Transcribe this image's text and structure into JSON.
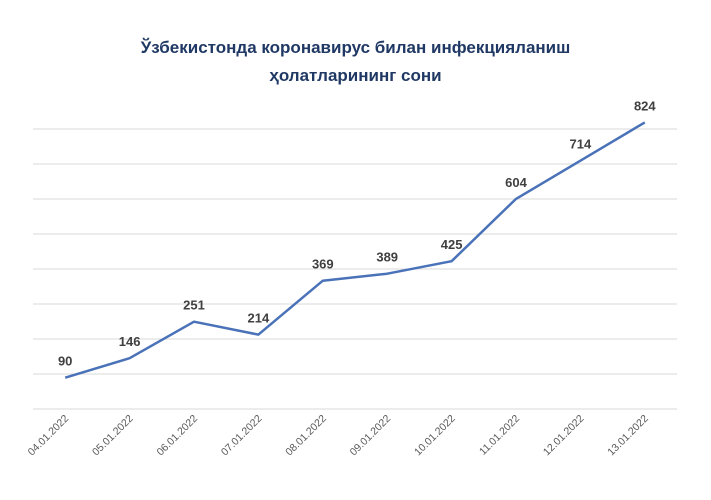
{
  "chart_data": {
    "type": "line",
    "title": "Ўзбекистонда коронавирус билан инфекцияланиш ҳолатларининг сони",
    "title_lines": [
      "Ўзбекистонда коронавирус билан инфекцияланиш",
      "ҳолатларининг сони"
    ],
    "xlabel": "",
    "ylabel": "",
    "categories": [
      "04.01.2022",
      "05.01.2022",
      "06.01.2022",
      "07.01.2022",
      "08.01.2022",
      "09.01.2022",
      "10.01.2022",
      "11.01.2022",
      "12.01.2022",
      "13.01.2022"
    ],
    "series": [
      {
        "values": [
          90,
          146,
          251,
          214,
          369,
          389,
          425,
          604,
          714,
          824
        ],
        "color": "#4a72b8"
      }
    ],
    "ylim": [
      0,
      900
    ],
    "grid": true,
    "legend": "none",
    "data_labels": true,
    "title_color": "#1f3864"
  }
}
